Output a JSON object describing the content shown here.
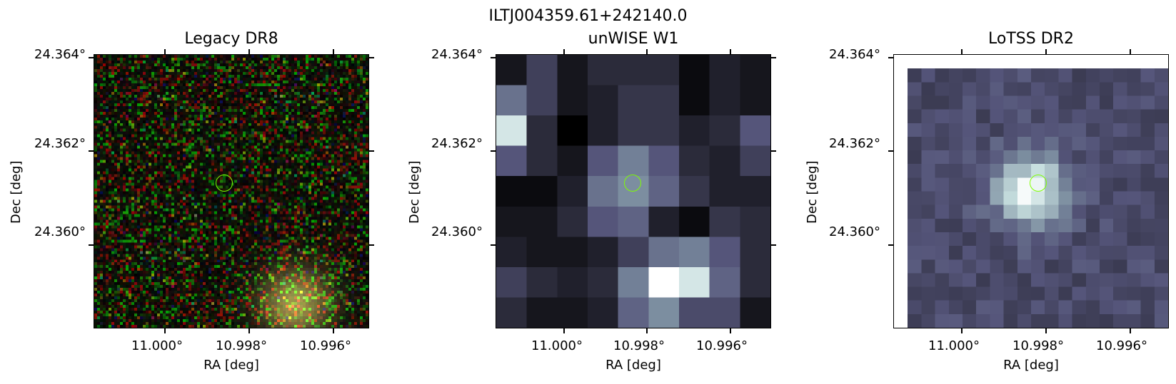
{
  "figure_title": "ILTJ004359.61+242140.0",
  "panels": [
    {
      "title": "Legacy DR8",
      "xlabel": "RA [deg]",
      "ylabel": "Dec [deg]",
      "yticks": [
        "24.364°",
        "24.362°",
        "24.360°"
      ],
      "xticks": [
        "11.000°",
        "10.998°",
        "10.996°"
      ],
      "marker_color": "#7fff00",
      "image_kind": "rgb-noise"
    },
    {
      "title": "unWISE W1",
      "xlabel": "RA [deg]",
      "ylabel": "Dec [deg]",
      "yticks": [
        "24.364°",
        "24.362°",
        "24.360°"
      ],
      "xticks": [
        "11.000°",
        "10.998°",
        "10.996°"
      ],
      "marker_color": "#7fff00",
      "image_kind": "grayscale-coarse"
    },
    {
      "title": "LoTSS DR2",
      "xlabel": "RA [deg]",
      "ylabel": "Dec [deg]",
      "yticks": [
        "24.364°",
        "24.362°",
        "24.360°"
      ],
      "xticks": [
        "11.000°",
        "10.998°",
        "10.996°"
      ],
      "marker_color": "#7fff00",
      "image_kind": "grayscale-fine"
    }
  ],
  "colormap": [
    "#000000",
    "#2b2b3a",
    "#55557a",
    "#7c8ea0",
    "#c6dede",
    "#ffffff"
  ],
  "unwise_grid": [
    [
      0.1,
      0.3,
      0.1,
      0.2,
      0.2,
      0.2,
      0.05,
      0.15,
      0.1
    ],
    [
      0.5,
      0.3,
      0.1,
      0.15,
      0.25,
      0.25,
      0.05,
      0.15,
      0.1
    ],
    [
      0.85,
      0.2,
      0.0,
      0.15,
      0.25,
      0.25,
      0.15,
      0.2,
      0.4
    ],
    [
      0.4,
      0.2,
      0.1,
      0.4,
      0.55,
      0.4,
      0.2,
      0.15,
      0.3
    ],
    [
      0.05,
      0.05,
      0.15,
      0.5,
      0.6,
      0.45,
      0.25,
      0.15,
      0.15
    ],
    [
      0.1,
      0.1,
      0.2,
      0.4,
      0.45,
      0.15,
      0.05,
      0.25,
      0.2
    ],
    [
      0.15,
      0.1,
      0.1,
      0.15,
      0.3,
      0.5,
      0.55,
      0.4,
      0.2
    ],
    [
      0.3,
      0.2,
      0.15,
      0.2,
      0.55,
      1.0,
      0.85,
      0.45,
      0.2
    ],
    [
      0.2,
      0.1,
      0.1,
      0.15,
      0.45,
      0.6,
      0.35,
      0.35,
      0.1
    ]
  ]
}
